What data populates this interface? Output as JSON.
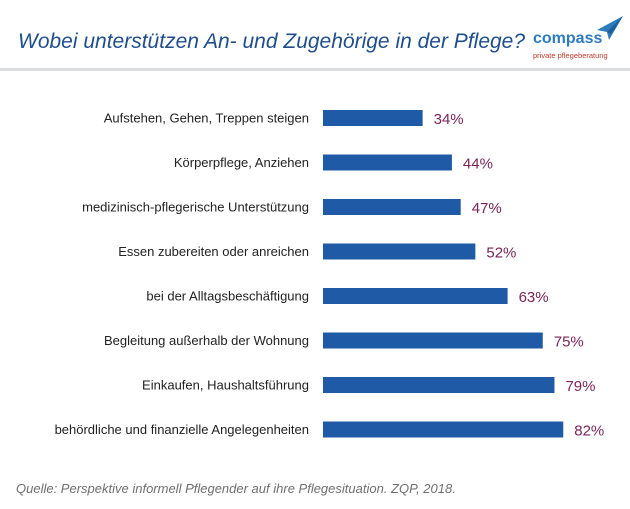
{
  "header": {
    "title": "Wobei unterstützen An- und Zugehörige in der Pflege?"
  },
  "logo": {
    "name": "compass",
    "subtitle": "private pflegeberatung"
  },
  "colors": {
    "bar": "#1f5aa6",
    "value_label": "#7b2458",
    "title": "#1f4e8c"
  },
  "chart_data": {
    "type": "bar",
    "orientation": "horizontal",
    "title": "Wobei unterstützen An- und Zugehörige in der Pflege?",
    "categories": [
      "Aufstehen, Gehen, Treppen steigen",
      "Körperpflege, Anziehen",
      "medizinisch-pflegerische Unterstützung",
      "Essen zubereiten oder anreichen",
      "bei der Alltagsbeschäftigung",
      "Begleitung außerhalb der Wohnung",
      "Einkaufen, Haushaltsführung",
      "behördliche und finanzielle Angelegenheiten"
    ],
    "values": [
      34,
      44,
      47,
      52,
      63,
      75,
      79,
      82
    ],
    "labels": [
      "34%",
      "44%",
      "47%",
      "52%",
      "63%",
      "75%",
      "79%",
      "82%"
    ],
    "unit": "%",
    "xlim": [
      0,
      100
    ],
    "grid": false,
    "xlabel": "",
    "ylabel": ""
  },
  "footer": {
    "source": "Quelle: Perspektive informell Pflegender auf ihre Pflegesituation. ZQP, 2018."
  }
}
